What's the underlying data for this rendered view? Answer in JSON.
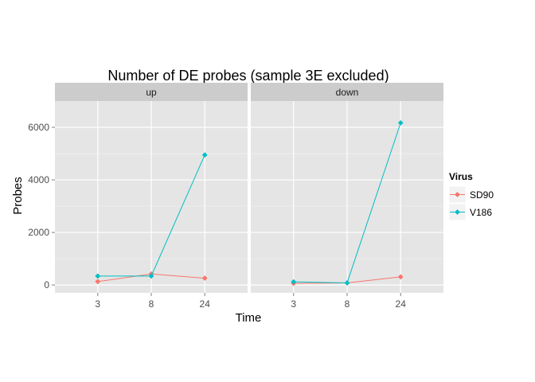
{
  "chart_data": {
    "type": "line",
    "title": "Number of DE probes (sample 3E excluded)",
    "xlabel": "Time",
    "ylabel": "Probes",
    "categories": [
      "3",
      "8",
      "24"
    ],
    "yticks": [
      0,
      2000,
      4000,
      6000
    ],
    "ylim": [
      -300,
      7000
    ],
    "grid": true,
    "legend": {
      "title": "Virus",
      "placement": "right",
      "entries": [
        {
          "name": "SD90",
          "color": "#F8766D"
        },
        {
          "name": "V186",
          "color": "#00BFC4"
        }
      ]
    },
    "panels": [
      {
        "label": "up",
        "series": [
          {
            "name": "SD90",
            "color": "#F8766D",
            "values": [
              130,
              420,
              260
            ]
          },
          {
            "name": "V186",
            "color": "#00BFC4",
            "values": [
              340,
              340,
              4950
            ]
          }
        ]
      },
      {
        "label": "down",
        "series": [
          {
            "name": "SD90",
            "color": "#F8766D",
            "values": [
              60,
              80,
              310
            ]
          },
          {
            "name": "V186",
            "color": "#00BFC4",
            "values": [
              120,
              80,
              6170
            ]
          }
        ]
      }
    ]
  }
}
